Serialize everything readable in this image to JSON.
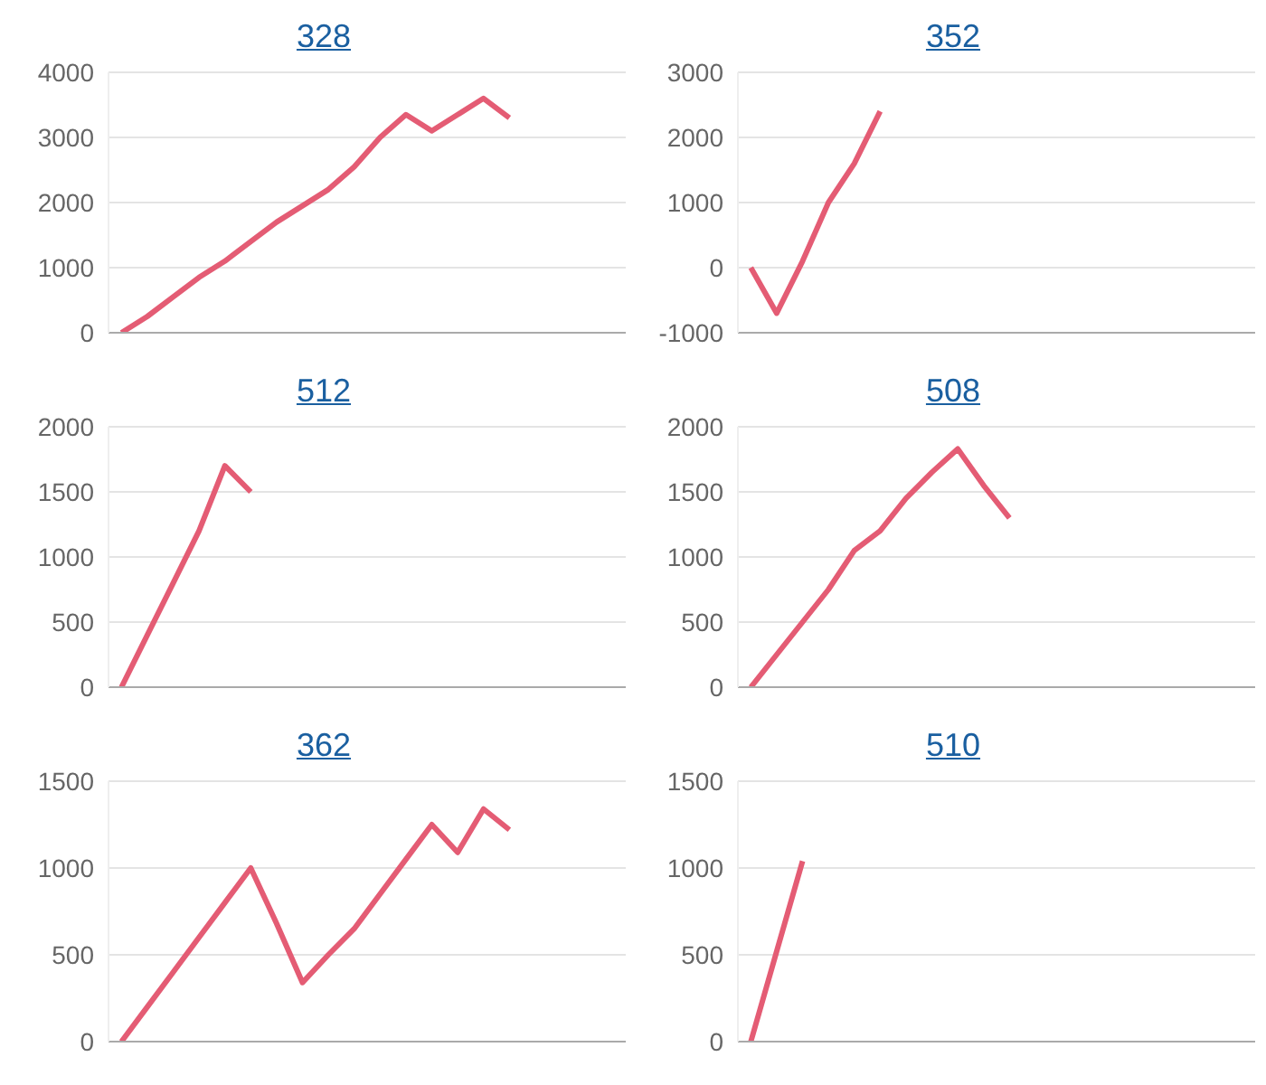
{
  "chart_data": [
    {
      "type": "line",
      "title": "328",
      "categories": [
        null,
        null,
        null,
        null,
        null,
        null,
        null,
        null,
        null,
        null,
        null,
        null,
        null,
        null,
        null,
        null,
        null,
        null,
        null,
        null
      ],
      "values": [
        0,
        250,
        550,
        850,
        1100,
        1400,
        1700,
        1950,
        2200,
        2550,
        3000,
        3350,
        3100,
        3350,
        3600,
        3300,
        null,
        null,
        null,
        null
      ],
      "color": "#e45c74",
      "ylim": [
        0,
        4000
      ],
      "yticks": [
        0,
        1000,
        2000,
        3000,
        4000
      ],
      "grid": "y",
      "tick_labels": "y",
      "marker": "none"
    },
    {
      "type": "line",
      "title": "352",
      "categories": [
        null,
        null,
        null,
        null,
        null,
        null,
        null,
        null,
        null,
        null,
        null,
        null,
        null,
        null,
        null,
        null,
        null,
        null,
        null,
        null
      ],
      "values": [
        0,
        -700,
        100,
        1000,
        1600,
        2400,
        null,
        null,
        null,
        null,
        null,
        null,
        null,
        null,
        null,
        null,
        null,
        null,
        null,
        null
      ],
      "color": "#e45c74",
      "ylim": [
        -1000,
        3000
      ],
      "yticks": [
        -1000,
        0,
        1000,
        2000,
        3000
      ],
      "grid": "y",
      "tick_labels": "y",
      "marker": "none"
    },
    {
      "type": "line",
      "title": "512",
      "categories": [
        null,
        null,
        null,
        null,
        null,
        null,
        null,
        null,
        null,
        null,
        null,
        null,
        null,
        null,
        null,
        null,
        null,
        null,
        null,
        null
      ],
      "values": [
        0,
        400,
        800,
        1200,
        1700,
        1500,
        null,
        null,
        null,
        null,
        null,
        null,
        null,
        null,
        null,
        null,
        null,
        null,
        null,
        null
      ],
      "color": "#e45c74",
      "ylim": [
        0,
        2000
      ],
      "yticks": [
        0,
        500,
        1000,
        1500,
        2000
      ],
      "grid": "y",
      "tick_labels": "y",
      "marker": "none"
    },
    {
      "type": "line",
      "title": "508",
      "categories": [
        null,
        null,
        null,
        null,
        null,
        null,
        null,
        null,
        null,
        null,
        null,
        null,
        null,
        null,
        null,
        null,
        null,
        null,
        null,
        null
      ],
      "values": [
        0,
        250,
        500,
        750,
        1050,
        1200,
        1450,
        1650,
        1830,
        1550,
        1300,
        null,
        null,
        null,
        null,
        null,
        null,
        null,
        null,
        null
      ],
      "color": "#e45c74",
      "ylim": [
        0,
        2000
      ],
      "yticks": [
        0,
        500,
        1000,
        1500,
        2000
      ],
      "grid": "y",
      "tick_labels": "y",
      "marker": "none"
    },
    {
      "type": "line",
      "title": "362",
      "categories": [
        null,
        null,
        null,
        null,
        null,
        null,
        null,
        null,
        null,
        null,
        null,
        null,
        null,
        null,
        null,
        null,
        null,
        null,
        null,
        null
      ],
      "values": [
        0,
        200,
        400,
        600,
        800,
        1000,
        680,
        340,
        500,
        650,
        850,
        1050,
        1250,
        1090,
        1340,
        1220,
        null,
        null,
        null,
        null
      ],
      "color": "#e45c74",
      "ylim": [
        0,
        1500
      ],
      "yticks": [
        0,
        500,
        1000,
        1500
      ],
      "grid": "y",
      "tick_labels": "y",
      "marker": "none"
    },
    {
      "type": "line",
      "title": "510",
      "categories": [
        null,
        null,
        null,
        null,
        null,
        null,
        null,
        null,
        null,
        null,
        null,
        null,
        null,
        null,
        null,
        null,
        null,
        null,
        null,
        null
      ],
      "values": [
        0,
        520,
        1040,
        null,
        null,
        null,
        null,
        null,
        null,
        null,
        null,
        null,
        null,
        null,
        null,
        null,
        null,
        null,
        null,
        null
      ],
      "color": "#e45c74",
      "ylim": [
        0,
        1500
      ],
      "yticks": [
        0,
        500,
        1000,
        1500
      ],
      "grid": "y",
      "tick_labels": "y",
      "marker": "none"
    }
  ]
}
